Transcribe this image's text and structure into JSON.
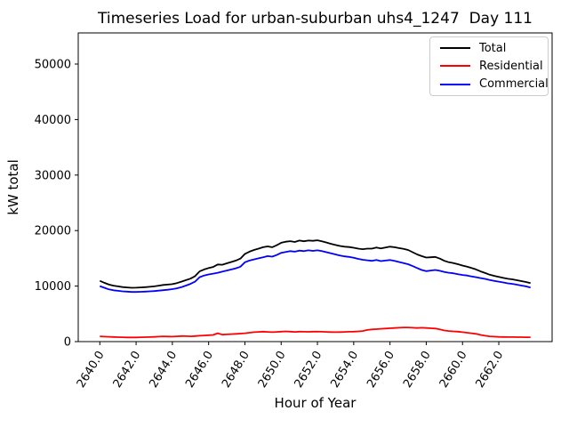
{
  "title": "Timeseries Load for urban-suburban uhs4_1247  Day 111",
  "colors": {
    "background": "#ffffff",
    "axes": "#000000",
    "legend_border": "#cccccc",
    "total": "#000000",
    "residential": "#ff0000",
    "commercial": "#0000ff"
  },
  "chart_data": {
    "type": "line",
    "title": "Timeseries Load for urban-suburban uhs4_1247  Day 111",
    "xlabel": "Hour of Year",
    "ylabel": "kW total",
    "grid": false,
    "legend_position": "upper right",
    "xlim": [
      2638.81,
      2664.94
    ],
    "ylim": [
      0,
      55609
    ],
    "xticks": [
      2640,
      2642,
      2644,
      2646,
      2648,
      2650,
      2652,
      2654,
      2656,
      2658,
      2660,
      2662
    ],
    "xtick_labels": [
      "2640.0",
      "2642.0",
      "2644.0",
      "2646.0",
      "2648.0",
      "2650.0",
      "2652.0",
      "2654.0",
      "2656.0",
      "2658.0",
      "2660.0",
      "2662.0"
    ],
    "yticks": [
      0,
      10000,
      20000,
      30000,
      40000,
      50000
    ],
    "ytick_labels": [
      "0",
      "10000",
      "20000",
      "30000",
      "40000",
      "50000"
    ],
    "x": [
      2640.0,
      2640.25,
      2640.5,
      2640.75,
      2641.0,
      2641.25,
      2641.5,
      2641.75,
      2642.0,
      2642.25,
      2642.5,
      2642.75,
      2643.0,
      2643.25,
      2643.5,
      2643.75,
      2644.0,
      2644.25,
      2644.5,
      2644.75,
      2645.0,
      2645.25,
      2645.5,
      2645.75,
      2646.0,
      2646.25,
      2646.5,
      2646.75,
      2647.0,
      2647.25,
      2647.5,
      2647.75,
      2648.0,
      2648.25,
      2648.5,
      2648.75,
      2649.0,
      2649.25,
      2649.5,
      2649.75,
      2650.0,
      2650.25,
      2650.5,
      2650.75,
      2651.0,
      2651.25,
      2651.5,
      2651.75,
      2652.0,
      2652.25,
      2652.5,
      2652.75,
      2653.0,
      2653.25,
      2653.5,
      2653.75,
      2654.0,
      2654.25,
      2654.5,
      2654.75,
      2655.0,
      2655.25,
      2655.5,
      2655.75,
      2656.0,
      2656.25,
      2656.5,
      2656.75,
      2657.0,
      2657.25,
      2657.5,
      2657.75,
      2658.0,
      2658.25,
      2658.5,
      2658.75,
      2659.0,
      2659.25,
      2659.5,
      2659.75,
      2660.0,
      2660.25,
      2660.5,
      2660.75,
      2661.0,
      2661.25,
      2661.5,
      2661.75,
      2662.0,
      2662.25,
      2662.5,
      2662.75,
      2663.0,
      2663.25,
      2663.5,
      2663.75
    ],
    "series": [
      {
        "name": "Total",
        "color": "#000000",
        "values": [
          10950,
          10600,
          10270,
          10080,
          9950,
          9830,
          9760,
          9700,
          9710,
          9760,
          9800,
          9870,
          9950,
          10080,
          10210,
          10270,
          10350,
          10550,
          10800,
          11080,
          11350,
          11800,
          12650,
          13000,
          13250,
          13450,
          13900,
          13850,
          14100,
          14350,
          14600,
          14950,
          15800,
          16200,
          16500,
          16750,
          17000,
          17150,
          17000,
          17350,
          17800,
          18000,
          18100,
          17950,
          18200,
          18080,
          18210,
          18150,
          18250,
          18080,
          17850,
          17620,
          17400,
          17220,
          17100,
          17030,
          16900,
          16750,
          16650,
          16750,
          16750,
          16950,
          16800,
          16950,
          17100,
          17000,
          16850,
          16700,
          16500,
          16100,
          15700,
          15400,
          15150,
          15200,
          15250,
          14950,
          14550,
          14300,
          14150,
          13950,
          13700,
          13500,
          13250,
          13000,
          12650,
          12350,
          12050,
          11850,
          11650,
          11480,
          11320,
          11210,
          11050,
          10900,
          10740,
          10530
        ]
      },
      {
        "name": "Residential",
        "color": "#ff0000",
        "values": [
          950,
          900,
          870,
          830,
          800,
          780,
          760,
          750,
          760,
          780,
          800,
          820,
          850,
          900,
          950,
          920,
          900,
          950,
          1000,
          980,
          950,
          1000,
          1050,
          1100,
          1150,
          1200,
          1500,
          1250,
          1300,
          1350,
          1400,
          1450,
          1500,
          1600,
          1700,
          1750,
          1800,
          1750,
          1700,
          1750,
          1800,
          1850,
          1800,
          1750,
          1800,
          1780,
          1760,
          1800,
          1800,
          1780,
          1750,
          1720,
          1700,
          1720,
          1750,
          1780,
          1800,
          1850,
          1900,
          2100,
          2200,
          2250,
          2300,
          2350,
          2400,
          2450,
          2500,
          2550,
          2550,
          2500,
          2450,
          2500,
          2450,
          2400,
          2350,
          2200,
          2000,
          1900,
          1850,
          1800,
          1700,
          1600,
          1500,
          1400,
          1200,
          1050,
          950,
          900,
          850,
          830,
          820,
          810,
          800,
          800,
          790,
          780
        ]
      },
      {
        "name": "Commercial",
        "color": "#0000ff",
        "values": [
          10000,
          9700,
          9400,
          9250,
          9150,
          9050,
          9000,
          8950,
          8950,
          8980,
          9000,
          9050,
          9100,
          9180,
          9260,
          9350,
          9450,
          9600,
          9800,
          10100,
          10400,
          10800,
          11600,
          11900,
          12100,
          12250,
          12400,
          12600,
          12800,
          13000,
          13200,
          13500,
          14300,
          14600,
          14800,
          15000,
          15200,
          15400,
          15300,
          15600,
          16000,
          16150,
          16300,
          16200,
          16400,
          16300,
          16450,
          16350,
          16450,
          16300,
          16100,
          15900,
          15700,
          15500,
          15350,
          15250,
          15100,
          14900,
          14750,
          14650,
          14550,
          14700,
          14500,
          14600,
          14700,
          14550,
          14350,
          14150,
          13950,
          13600,
          13250,
          12900,
          12700,
          12800,
          12900,
          12750,
          12550,
          12400,
          12300,
          12150,
          12000,
          11900,
          11750,
          11600,
          11450,
          11300,
          11100,
          10950,
          10800,
          10650,
          10500,
          10400,
          10250,
          10100,
          9950,
          9750
        ]
      }
    ]
  }
}
